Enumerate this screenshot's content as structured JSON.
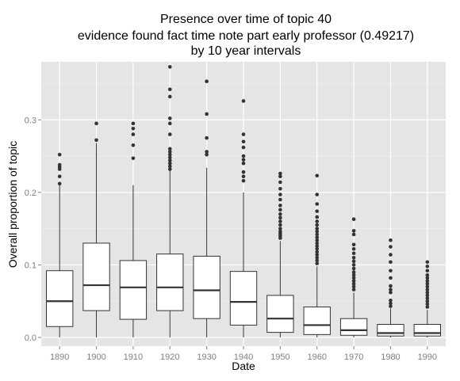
{
  "chart_data": {
    "type": "box",
    "title_lines": [
      "Presence over time of topic 40",
      "evidence found fact time note part early professor (0.49217)",
      "by 10 year intervals"
    ],
    "xlabel": "Date",
    "ylabel": "Overall proportion of topic",
    "ylim": [
      -0.012,
      0.38
    ],
    "yticks": [
      0.0,
      0.1,
      0.2,
      0.3
    ],
    "ytick_labels": [
      "0.0",
      "0.1",
      "0.2",
      "0.3"
    ],
    "grid": true,
    "background": "#e5e5e5",
    "categories": [
      "1890",
      "1900",
      "1910",
      "1920",
      "1930",
      "1940",
      "1950",
      "1960",
      "1970",
      "1980",
      "1990"
    ],
    "boxes": [
      {
        "category": "1890",
        "whisker_low": 0.0,
        "q1": 0.015,
        "median": 0.05,
        "q3": 0.092,
        "whisker_high": 0.21,
        "outliers": [
          0.212,
          0.222,
          0.232,
          0.235,
          0.238,
          0.252
        ]
      },
      {
        "category": "1900",
        "whisker_low": 0.0,
        "q1": 0.037,
        "median": 0.072,
        "q3": 0.13,
        "whisker_high": 0.268,
        "outliers": [
          0.272,
          0.295
        ]
      },
      {
        "category": "1910",
        "whisker_low": 0.0,
        "q1": 0.025,
        "median": 0.069,
        "q3": 0.106,
        "whisker_high": 0.21,
        "outliers": [
          0.247,
          0.265,
          0.28,
          0.288,
          0.295
        ]
      },
      {
        "category": "1920",
        "whisker_low": 0.0,
        "q1": 0.037,
        "median": 0.069,
        "q3": 0.115,
        "whisker_high": 0.23,
        "outliers": [
          0.232,
          0.236,
          0.24,
          0.244,
          0.248,
          0.252,
          0.256,
          0.26,
          0.28,
          0.295,
          0.302,
          0.332,
          0.342,
          0.373
        ]
      },
      {
        "category": "1930",
        "whisker_low": 0.0,
        "q1": 0.026,
        "median": 0.065,
        "q3": 0.112,
        "whisker_high": 0.234,
        "outliers": [
          0.252,
          0.256,
          0.275,
          0.308,
          0.353
        ]
      },
      {
        "category": "1940",
        "whisker_low": 0.0,
        "q1": 0.017,
        "median": 0.049,
        "q3": 0.091,
        "whisker_high": 0.2,
        "outliers": [
          0.216,
          0.222,
          0.228,
          0.24,
          0.245,
          0.25,
          0.262,
          0.27,
          0.28,
          0.326
        ]
      },
      {
        "category": "1950",
        "whisker_low": 0.0,
        "q1": 0.007,
        "median": 0.026,
        "q3": 0.058,
        "whisker_high": 0.133,
        "outliers": [
          0.137,
          0.14,
          0.143,
          0.146,
          0.15,
          0.155,
          0.16,
          0.165,
          0.17,
          0.176,
          0.182,
          0.19,
          0.197,
          0.205,
          0.214,
          0.222,
          0.226
        ]
      },
      {
        "category": "1960",
        "whisker_low": 0.0,
        "q1": 0.004,
        "median": 0.017,
        "q3": 0.042,
        "whisker_high": 0.098,
        "outliers": [
          0.102,
          0.106,
          0.11,
          0.114,
          0.118,
          0.122,
          0.126,
          0.13,
          0.134,
          0.138,
          0.142,
          0.146,
          0.15,
          0.155,
          0.16,
          0.166,
          0.174,
          0.184,
          0.197,
          0.223
        ]
      },
      {
        "category": "1970",
        "whisker_low": 0.0,
        "q1": 0.003,
        "median": 0.01,
        "q3": 0.026,
        "whisker_high": 0.062,
        "outliers": [
          0.066,
          0.07,
          0.074,
          0.078,
          0.082,
          0.086,
          0.09,
          0.095,
          0.1,
          0.105,
          0.11,
          0.116,
          0.122,
          0.128,
          0.142,
          0.147,
          0.163
        ]
      },
      {
        "category": "1980",
        "whisker_low": 0.0,
        "q1": 0.002,
        "median": 0.006,
        "q3": 0.018,
        "whisker_high": 0.04,
        "outliers": [
          0.043,
          0.047,
          0.051,
          0.062,
          0.066,
          0.071,
          0.082,
          0.092,
          0.104,
          0.114,
          0.125,
          0.134
        ]
      },
      {
        "category": "1990",
        "whisker_low": 0.0,
        "q1": 0.002,
        "median": 0.006,
        "q3": 0.018,
        "whisker_high": 0.038,
        "outliers": [
          0.042,
          0.046,
          0.05,
          0.054,
          0.058,
          0.062,
          0.066,
          0.07,
          0.074,
          0.078,
          0.082,
          0.086,
          0.092,
          0.098,
          0.104
        ]
      }
    ]
  }
}
